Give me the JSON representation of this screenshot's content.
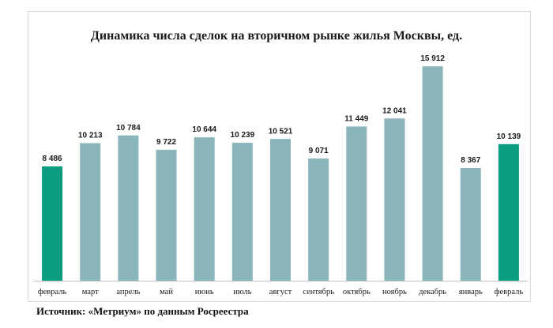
{
  "chart_data": {
    "type": "bar",
    "title": "Динамика числа сделок на вторичном рынке жилья Москвы, ед.",
    "categories": [
      "февраль",
      "март",
      "апрель",
      "май",
      "июнь",
      "июль",
      "август",
      "сентябрь",
      "октябрь",
      "ноябрь",
      "декабрь",
      "январь",
      "февраль"
    ],
    "values": [
      8486,
      10213,
      10784,
      9722,
      10644,
      10239,
      10521,
      9071,
      11449,
      12041,
      15912,
      8367,
      10139
    ],
    "value_labels": [
      "8 486",
      "10 213",
      "10 784",
      "9 722",
      "10 644",
      "10 239",
      "10 521",
      "9 071",
      "11 449",
      "12 041",
      "15 912",
      "8 367",
      "10 139"
    ],
    "highlight_indices": [
      0,
      12
    ],
    "ylim": [
      0,
      16800
    ],
    "grid": false,
    "colors": {
      "bar": "#89b5bb",
      "highlight": "#0c9d80",
      "axis": "#bfbfbf"
    }
  },
  "source_text": "Источник: «Метриум» по данным Росреестра"
}
